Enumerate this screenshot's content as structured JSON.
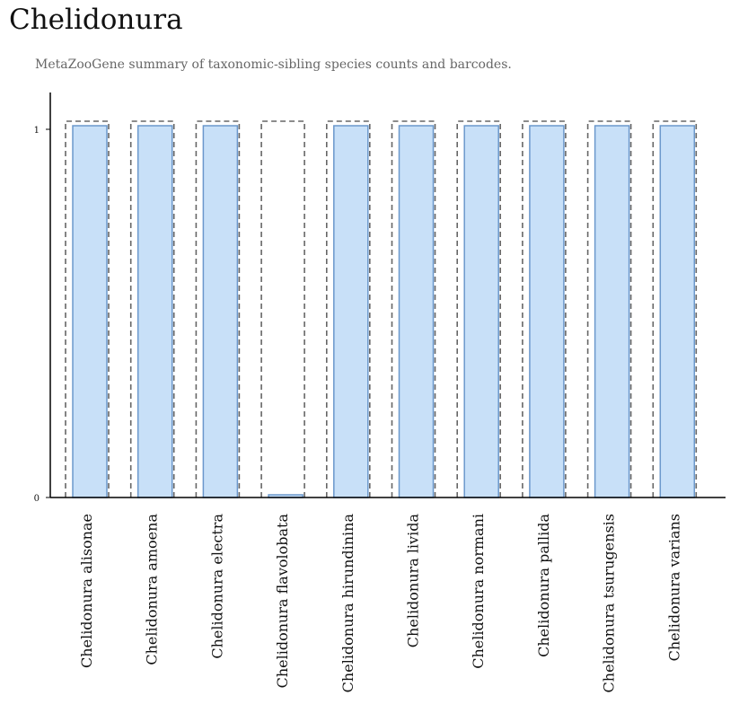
{
  "title": "Chelidonura",
  "subtitle": "MetaZooGene summary of taxonomic-sibling species counts and barcodes.",
  "colors": {
    "bar_fill": "#c8e0f8",
    "bar_stroke": "#6b98cc",
    "outline_stroke": "#666666",
    "axis": "#000000",
    "title": "#111111",
    "subtitle": "#666666"
  },
  "chart_data": {
    "type": "bar",
    "title": "Chelidonura",
    "subtitle": "MetaZooGene summary of taxonomic-sibling species counts and barcodes.",
    "xlabel": "",
    "ylabel": "",
    "ylim": [
      0,
      1
    ],
    "yticks": [
      "0",
      "1"
    ],
    "categories": [
      "Chelidonura alisonae",
      "Chelidonura amoena",
      "Chelidonura electra",
      "Chelidonura flavolobata",
      "Chelidonura hirundinina",
      "Chelidonura livida",
      "Chelidonura normani",
      "Chelidonura pallida",
      "Chelidonura tsurugensis",
      "Chelidonura varians"
    ],
    "series": [
      {
        "style": "dashed-outline",
        "values": [
          1,
          1,
          1,
          1,
          1,
          1,
          1,
          1,
          1,
          1
        ]
      },
      {
        "style": "filled",
        "values": [
          1,
          1,
          1,
          0,
          1,
          1,
          1,
          1,
          1,
          1
        ]
      }
    ],
    "grid": false,
    "legend": "none"
  }
}
